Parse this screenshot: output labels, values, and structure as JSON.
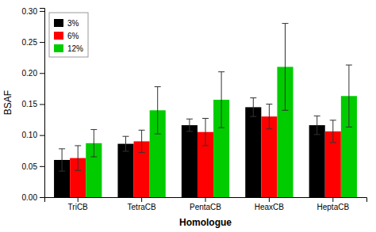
{
  "chart_data": {
    "type": "bar",
    "xlabel": "Homologue",
    "ylabel": "BSAF",
    "categories": [
      "TriCB",
      "TetraCB",
      "PentaCB",
      "HeaxCB",
      "HeptaCB"
    ],
    "series": [
      {
        "name": "3%",
        "color": "#000000",
        "values": [
          0.06,
          0.086,
          0.116,
          0.145,
          0.116
        ],
        "errors": [
          0.018,
          0.012,
          0.01,
          0.015,
          0.015
        ]
      },
      {
        "name": "6%",
        "color": "#ff0000",
        "values": [
          0.063,
          0.09,
          0.105,
          0.13,
          0.106
        ],
        "errors": [
          0.02,
          0.018,
          0.022,
          0.02,
          0.018
        ]
      },
      {
        "name": "12%",
        "color": "#00cc00",
        "values": [
          0.087,
          0.14,
          0.157,
          0.21,
          0.163
        ],
        "errors": [
          0.022,
          0.038,
          0.045,
          0.07,
          0.05
        ]
      }
    ],
    "ylim": [
      0.0,
      0.305
    ],
    "yticks": [
      {
        "value": 0.0,
        "label": "0.00"
      },
      {
        "value": 0.05,
        "label": "0.05"
      },
      {
        "value": 0.1,
        "label": "0.10"
      },
      {
        "value": 0.15,
        "label": "0.15"
      },
      {
        "value": 0.2,
        "label": "0.20"
      },
      {
        "value": 0.25,
        "label": "0.25"
      },
      {
        "value": 0.3,
        "label": "0.30"
      }
    ],
    "grid": false,
    "legend": "upper-left"
  }
}
